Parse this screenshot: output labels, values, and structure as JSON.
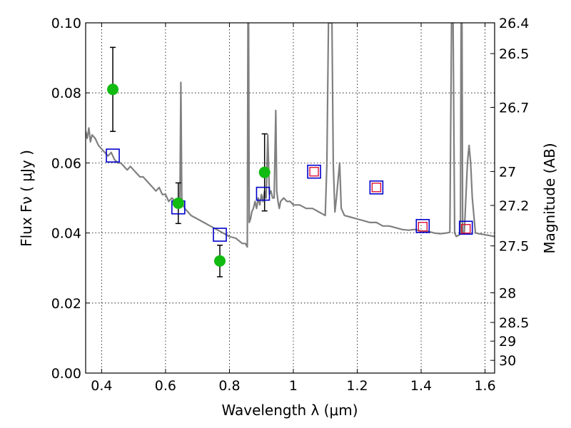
{
  "chart_data": {
    "type": "scatter",
    "xlabel": "Wavelength  λ (μm)",
    "ylabel": "Flux  Fν  ( μJy )",
    "y2label": "Magnitude (AB)",
    "xlim": [
      0.35,
      1.63
    ],
    "ylim": [
      0.0,
      0.1
    ],
    "grid": true,
    "x_ticks": [
      {
        "value": 0.4,
        "label": "0.4"
      },
      {
        "value": 0.6,
        "label": "0.6"
      },
      {
        "value": 0.8,
        "label": "0.8"
      },
      {
        "value": 1.0,
        "label": "1"
      },
      {
        "value": 1.2,
        "label": "1.2"
      },
      {
        "value": 1.4,
        "label": "1.4"
      },
      {
        "value": 1.6,
        "label": "1.6"
      }
    ],
    "y_ticks": [
      {
        "value": 0.0,
        "label": "0.00"
      },
      {
        "value": 0.02,
        "label": "0.02"
      },
      {
        "value": 0.04,
        "label": "0.04"
      },
      {
        "value": 0.06,
        "label": "0.06"
      },
      {
        "value": 0.08,
        "label": "0.08"
      },
      {
        "value": 0.1,
        "label": "0.10"
      }
    ],
    "mag_ticks": [
      {
        "value": 26.4,
        "label": "26.4"
      },
      {
        "value": 26.5,
        "label": "26.5"
      },
      {
        "value": 26.7,
        "label": "26.7"
      },
      {
        "value": 27.0,
        "label": "27"
      },
      {
        "value": 27.2,
        "label": "27.2"
      },
      {
        "value": 27.5,
        "label": "27.5"
      },
      {
        "value": 28.0,
        "label": "28"
      },
      {
        "value": 28.5,
        "label": "28.5"
      },
      {
        "value": 29.0,
        "label": "29"
      },
      {
        "value": 30.0,
        "label": "30"
      }
    ],
    "colors": {
      "model": "#808080",
      "observed": "#11bb11",
      "model_band": "#0000cc",
      "predicted": "#dd1133",
      "errorbar": "#000000"
    },
    "series": [
      {
        "kind": "model-spectrum",
        "x": [
          0.35,
          0.355,
          0.36,
          0.365,
          0.37,
          0.38,
          0.39,
          0.4,
          0.41,
          0.42,
          0.43,
          0.44,
          0.45,
          0.46,
          0.47,
          0.48,
          0.49,
          0.5,
          0.51,
          0.52,
          0.53,
          0.54,
          0.55,
          0.56,
          0.57,
          0.58,
          0.59,
          0.6,
          0.61,
          0.62,
          0.63,
          0.64,
          0.645,
          0.648,
          0.651,
          0.655,
          0.66,
          0.67,
          0.68,
          0.7,
          0.72,
          0.74,
          0.76,
          0.78,
          0.8,
          0.82,
          0.84,
          0.85,
          0.856,
          0.858,
          0.86,
          0.862,
          0.866,
          0.87,
          0.875,
          0.88,
          0.885,
          0.89,
          0.895,
          0.9,
          0.905,
          0.91,
          0.915,
          0.92,
          0.925,
          0.93,
          0.935,
          0.94,
          0.945,
          0.948,
          0.952,
          0.956,
          0.96,
          0.97,
          0.98,
          0.99,
          1.0,
          1.02,
          1.04,
          1.06,
          1.08,
          1.1,
          1.105,
          1.11,
          1.115,
          1.118,
          1.121,
          1.125,
          1.13,
          1.135,
          1.14,
          1.145,
          1.15,
          1.16,
          1.18,
          1.2,
          1.22,
          1.24,
          1.26,
          1.28,
          1.3,
          1.32,
          1.34,
          1.36,
          1.38,
          1.4,
          1.42,
          1.44,
          1.46,
          1.48,
          1.49,
          1.495,
          1.5,
          1.505,
          1.51,
          1.52,
          1.523,
          1.525,
          1.528,
          1.53,
          1.535,
          1.54,
          1.545,
          1.55,
          1.555,
          1.56,
          1.57,
          1.58,
          1.6,
          1.63
        ],
        "y": [
          0.069,
          0.067,
          0.07,
          0.066,
          0.068,
          0.067,
          0.065,
          0.064,
          0.063,
          0.062,
          0.063,
          0.061,
          0.06,
          0.06,
          0.059,
          0.058,
          0.059,
          0.058,
          0.057,
          0.056,
          0.056,
          0.055,
          0.054,
          0.053,
          0.052,
          0.053,
          0.051,
          0.051,
          0.049,
          0.05,
          0.049,
          0.048,
          0.05,
          0.083,
          0.05,
          0.048,
          0.047,
          0.046,
          0.045,
          0.044,
          0.043,
          0.042,
          0.041,
          0.04,
          0.039,
          0.0385,
          0.037,
          0.037,
          0.036,
          0.1,
          0.1,
          0.043,
          0.044,
          0.046,
          0.047,
          0.049,
          0.047,
          0.05,
          0.048,
          0.051,
          0.049,
          0.052,
          0.05,
          0.068,
          0.051,
          0.052,
          0.05,
          0.05,
          0.075,
          0.052,
          0.049,
          0.047,
          0.049,
          0.05,
          0.049,
          0.049,
          0.048,
          0.048,
          0.047,
          0.047,
          0.046,
          0.045,
          0.06,
          0.1,
          0.1,
          0.1,
          0.1,
          0.06,
          0.046,
          0.05,
          0.055,
          0.06,
          0.047,
          0.045,
          0.0445,
          0.044,
          0.0435,
          0.043,
          0.043,
          0.042,
          0.042,
          0.0415,
          0.041,
          0.0408,
          0.041,
          0.0405,
          0.0405,
          0.04,
          0.0398,
          0.04,
          0.0402,
          0.1,
          0.1,
          0.04,
          0.039,
          0.0395,
          0.04,
          0.1,
          0.1,
          0.04,
          0.04,
          0.05,
          0.06,
          0.065,
          0.06,
          0.05,
          0.04,
          0.0398,
          0.0395,
          0.039
        ]
      },
      {
        "kind": "observed",
        "x": [
          0.435,
          0.64,
          0.77,
          0.91
        ],
        "y": [
          0.081,
          0.0485,
          0.032,
          0.0573
        ],
        "yerr": [
          0.012,
          0.0058,
          0.0045,
          0.011
        ]
      },
      {
        "kind": "model-band",
        "x": [
          0.435,
          0.64,
          0.77,
          0.905,
          1.065,
          1.26,
          1.405,
          1.54
        ],
        "y": [
          0.0621,
          0.0473,
          0.0395,
          0.0512,
          0.0575,
          0.053,
          0.042,
          0.0415
        ]
      },
      {
        "kind": "predicted",
        "x": [
          1.065,
          1.26,
          1.405,
          1.54
        ],
        "y": [
          0.0575,
          0.053,
          0.0418,
          0.0412
        ]
      }
    ]
  }
}
